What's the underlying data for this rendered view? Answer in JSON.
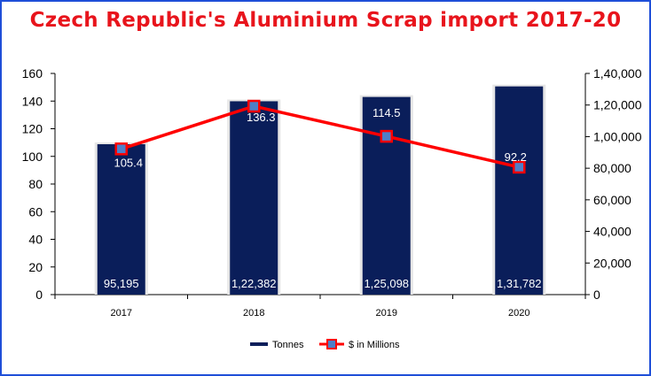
{
  "chart_data": {
    "type": "bar",
    "title": "Czech Republic's Aluminium Scrap import 2017-20",
    "categories": [
      "2017",
      "2018",
      "2019",
      "2020"
    ],
    "series": [
      {
        "name": "Tonnes",
        "kind": "bar",
        "axis": "right",
        "values": [
          95195,
          122382,
          125098,
          131782
        ],
        "labels": [
          "95,195",
          "1,22,382",
          "1,25,098",
          "1,31,782"
        ],
        "color": "#0a1e5a"
      },
      {
        "name": "$ in Millions",
        "kind": "line",
        "axis": "left",
        "values": [
          105.4,
          136.3,
          114.5,
          92.2
        ],
        "labels": [
          "105.4",
          "136.3",
          "114.5",
          "92.2"
        ],
        "color": "#ff0000",
        "marker_color": "#4f7fc8"
      }
    ],
    "y_left": {
      "ylim": [
        0,
        160
      ],
      "ticks": [
        0,
        20,
        40,
        60,
        80,
        100,
        120,
        140,
        160
      ],
      "tick_labels": [
        "0",
        "20",
        "40",
        "60",
        "80",
        "100",
        "120",
        "140",
        "160"
      ]
    },
    "y_right": {
      "ylim": [
        0,
        140000
      ],
      "ticks": [
        0,
        20000,
        40000,
        60000,
        80000,
        100000,
        120000,
        140000
      ],
      "tick_labels": [
        "0",
        "20,000",
        "40,000",
        "60,000",
        "80,000",
        "1,00,000",
        "1,20,000",
        "1,40,000"
      ]
    },
    "legend": "bottom",
    "grid": false
  }
}
